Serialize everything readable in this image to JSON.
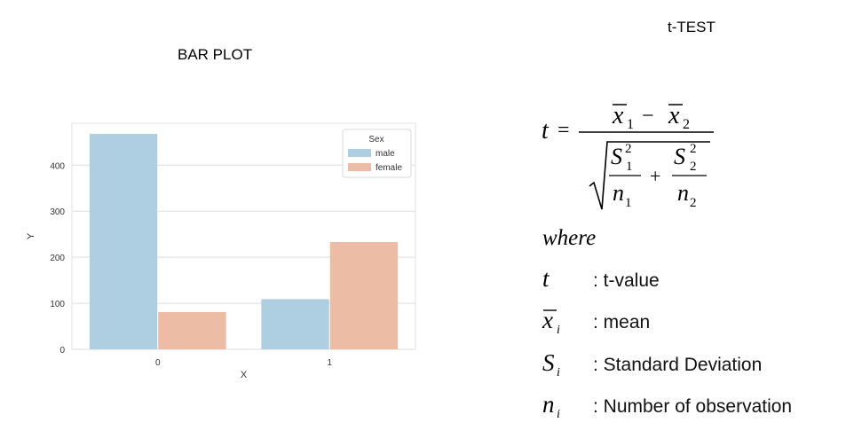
{
  "left_title": "BAR PLOT",
  "right_title": "t-TEST",
  "chart_data": {
    "type": "bar",
    "categories": [
      "0",
      "1"
    ],
    "series": [
      {
        "name": "male",
        "values": [
          468,
          109
        ],
        "color": "#aecfe1"
      },
      {
        "name": "female",
        "values": [
          81,
          233
        ],
        "color": "#edbca5"
      }
    ],
    "xlabel": "X",
    "ylabel": "Y",
    "ylim": [
      0,
      491
    ],
    "yticks": [
      0,
      100,
      200,
      300,
      400
    ],
    "grid": true,
    "legend": {
      "title": "Sex",
      "placement": "top-right"
    }
  },
  "formula": {
    "lhs": "t",
    "equals": "=",
    "x1": "x",
    "x1_sub": "1",
    "minus": "−",
    "x2": "x",
    "x2_sub": "2",
    "s1": "S",
    "s1_sub": "1",
    "s1_sup": "2",
    "n1": "n",
    "n1_sub": "1",
    "plus": "+",
    "s2": "S",
    "s2_sub": "2",
    "s2_sup": "2",
    "n2": "n",
    "n2_sub": "2",
    "where": "where"
  },
  "definitions": [
    {
      "symbol": "t",
      "sub": "",
      "text": ": t-value",
      "overline": false
    },
    {
      "symbol": "x",
      "sub": "i",
      "text": ": mean",
      "overline": true
    },
    {
      "symbol": "S",
      "sub": "i",
      "text": ": Standard Deviation",
      "overline": false
    },
    {
      "symbol": "n",
      "sub": "i",
      "text": ": Number of observation",
      "overline": false
    }
  ]
}
